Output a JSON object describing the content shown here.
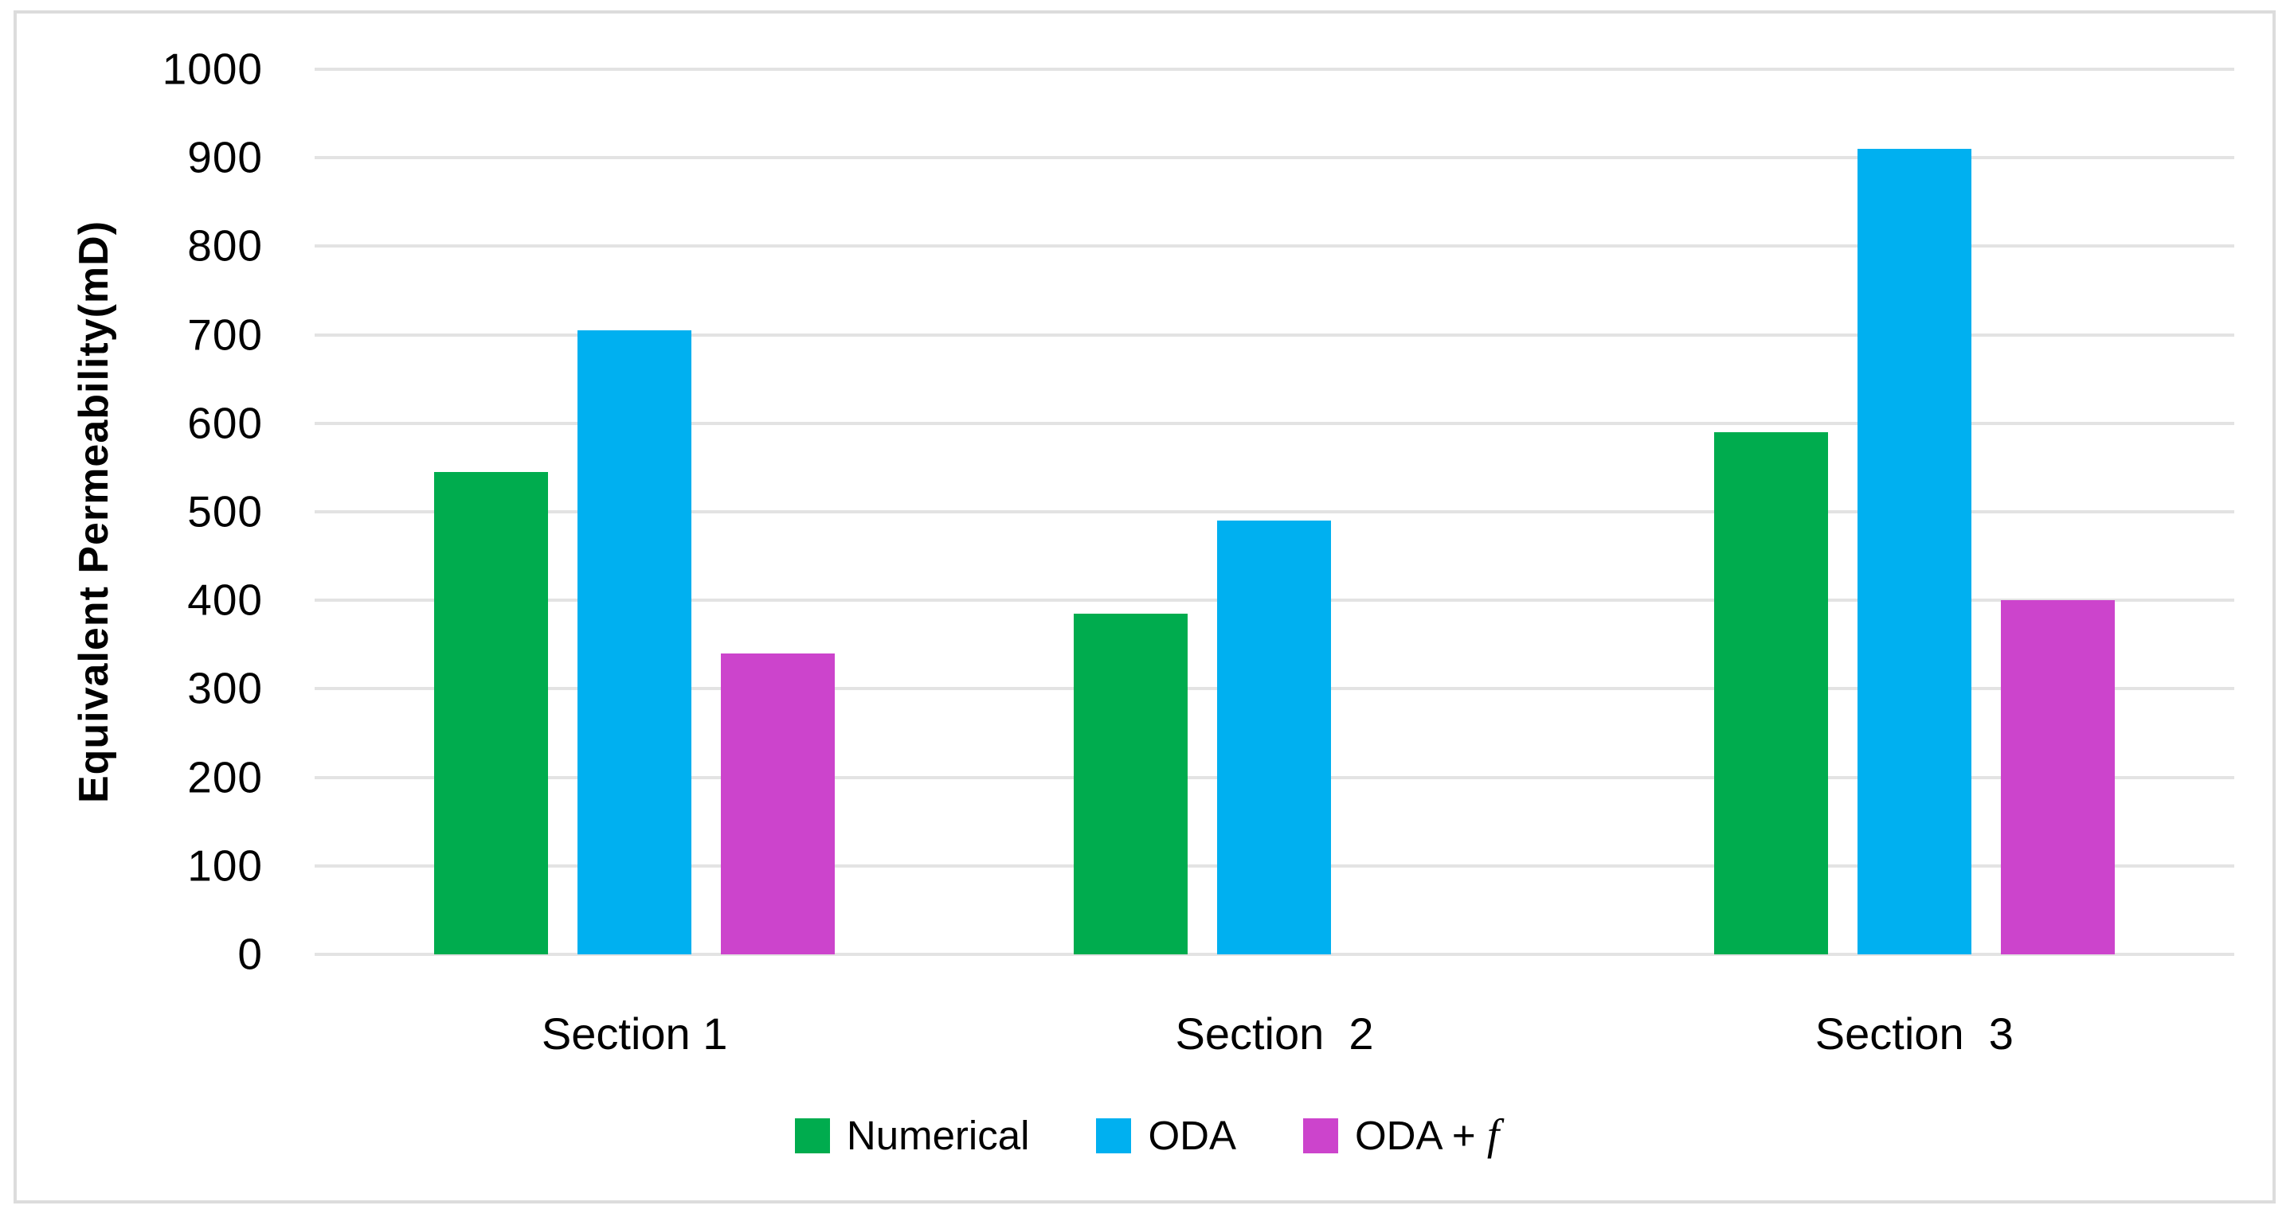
{
  "chart_data": {
    "type": "bar",
    "title": "",
    "xlabel": "",
    "ylabel": "Equivalent Permeability(mD)",
    "ylim": [
      0,
      1000
    ],
    "ytick_step": 100,
    "yticks": [
      0,
      100,
      200,
      300,
      400,
      500,
      600,
      700,
      800,
      900,
      1000
    ],
    "grid": true,
    "legend_position": "bottom",
    "categories": [
      "Section 1",
      "Section  2",
      "Section  3"
    ],
    "series": [
      {
        "name": "Numerical",
        "legend_main": "Numerical",
        "legend_italic": "",
        "color": "#00ac4e",
        "values": [
          545,
          385,
          590
        ]
      },
      {
        "name": "ODA",
        "legend_main": "ODA",
        "legend_italic": "",
        "color": "#00b0f0",
        "values": [
          705,
          490,
          910
        ]
      },
      {
        "name": "ODA + f",
        "legend_main": "ODA + ",
        "legend_italic": "f",
        "color": "#cc44cc",
        "values": [
          340,
          0,
          400
        ]
      }
    ]
  },
  "style": {
    "gridline_color": "#e3e3e3",
    "frame_color": "#dcdcdc",
    "background_color": "#ffffff",
    "text_color": "#000000"
  }
}
